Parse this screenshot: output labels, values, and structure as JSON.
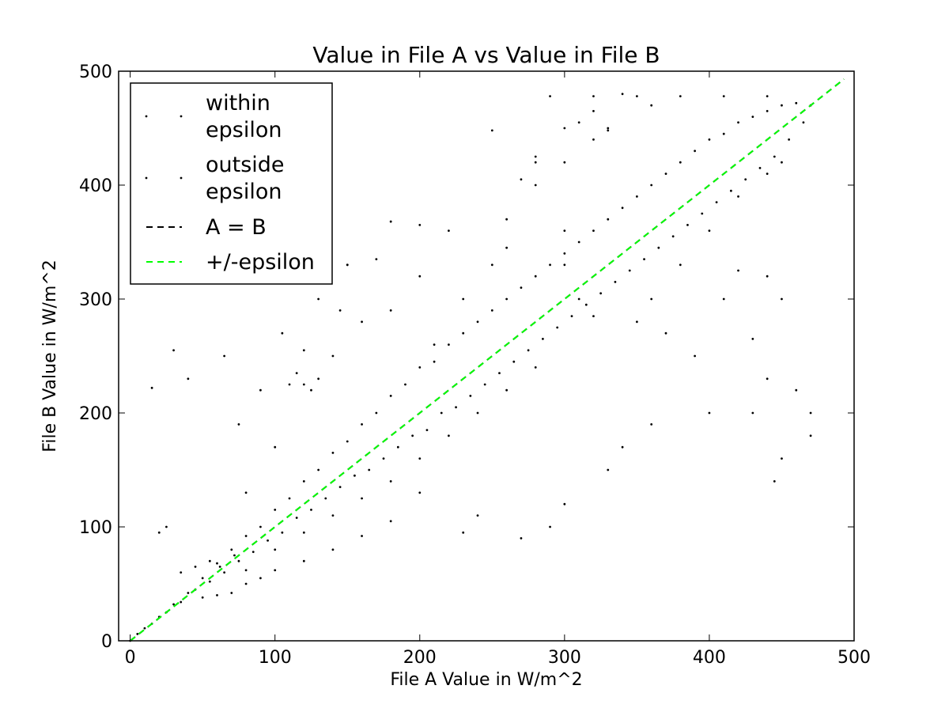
{
  "chart_data": {
    "type": "scatter",
    "title": "Value in File A vs Value in File B",
    "xlabel": "File A Value in W/m^2",
    "ylabel": "File B Value in W/m^2",
    "xlim": [
      -8,
      500
    ],
    "ylim": [
      0,
      500
    ],
    "x_ticks": [
      0,
      100,
      200,
      300,
      400,
      500
    ],
    "y_ticks": [
      0,
      100,
      200,
      300,
      400,
      500
    ],
    "x_tick_labels": [
      "0",
      "100",
      "200",
      "300",
      "400",
      "500"
    ],
    "y_tick_labels": [
      "0",
      "100",
      "200",
      "300",
      "400",
      "500"
    ],
    "grid": false,
    "legend_position": "top-left",
    "legend": [
      {
        "label_lines": [
          "within",
          "epsilon"
        ],
        "marker": "dot",
        "color": "#000000"
      },
      {
        "label_lines": [
          "outside",
          "epsilon"
        ],
        "marker": "dot",
        "color": "#000000"
      },
      {
        "label_lines": [
          "A = B"
        ],
        "marker": "dashed-line",
        "color": "#000000"
      },
      {
        "label_lines": [
          "+/-epsilon"
        ],
        "marker": "dashed-line",
        "color": "#00ff00"
      }
    ],
    "series": [
      {
        "name": "within epsilon",
        "kind": "points",
        "color": "#000000",
        "description_points": "dense cloud along y = x with wide spread",
        "points": [
          [
            0,
            0
          ],
          [
            5,
            6
          ],
          [
            10,
            11
          ],
          [
            15,
            15
          ],
          [
            20,
            21
          ],
          [
            25,
            25
          ],
          [
            30,
            32
          ],
          [
            35,
            34
          ],
          [
            40,
            42
          ],
          [
            45,
            45
          ],
          [
            50,
            55
          ],
          [
            55,
            52
          ],
          [
            60,
            68
          ],
          [
            65,
            60
          ],
          [
            70,
            80
          ],
          [
            75,
            70
          ],
          [
            80,
            92
          ],
          [
            85,
            78
          ],
          [
            90,
            100
          ],
          [
            95,
            88
          ],
          [
            100,
            115
          ],
          [
            105,
            95
          ],
          [
            110,
            125
          ],
          [
            115,
            108
          ],
          [
            120,
            140
          ],
          [
            125,
            115
          ],
          [
            130,
            150
          ],
          [
            135,
            125
          ],
          [
            140,
            165
          ],
          [
            145,
            135
          ],
          [
            150,
            175
          ],
          [
            155,
            145
          ],
          [
            160,
            190
          ],
          [
            165,
            150
          ],
          [
            170,
            200
          ],
          [
            175,
            160
          ],
          [
            180,
            215
          ],
          [
            185,
            170
          ],
          [
            190,
            225
          ],
          [
            195,
            180
          ],
          [
            200,
            240
          ],
          [
            205,
            185
          ],
          [
            210,
            245
          ],
          [
            215,
            200
          ],
          [
            220,
            260
          ],
          [
            225,
            205
          ],
          [
            230,
            270
          ],
          [
            235,
            215
          ],
          [
            240,
            280
          ],
          [
            245,
            225
          ],
          [
            250,
            290
          ],
          [
            255,
            235
          ],
          [
            260,
            300
          ],
          [
            265,
            245
          ],
          [
            270,
            310
          ],
          [
            275,
            255
          ],
          [
            280,
            320
          ],
          [
            285,
            265
          ],
          [
            290,
            330
          ],
          [
            295,
            275
          ],
          [
            300,
            340
          ],
          [
            305,
            285
          ],
          [
            310,
            350
          ],
          [
            315,
            295
          ],
          [
            320,
            360
          ],
          [
            325,
            305
          ],
          [
            330,
            370
          ],
          [
            335,
            315
          ],
          [
            340,
            380
          ],
          [
            345,
            325
          ],
          [
            350,
            390
          ],
          [
            355,
            335
          ],
          [
            360,
            400
          ],
          [
            365,
            345
          ],
          [
            370,
            410
          ],
          [
            375,
            355
          ],
          [
            380,
            420
          ],
          [
            385,
            365
          ],
          [
            390,
            430
          ],
          [
            395,
            375
          ],
          [
            400,
            440
          ],
          [
            405,
            385
          ],
          [
            410,
            445
          ],
          [
            415,
            395
          ],
          [
            420,
            455
          ],
          [
            425,
            405
          ],
          [
            430,
            460
          ],
          [
            435,
            415
          ],
          [
            440,
            465
          ],
          [
            445,
            425
          ],
          [
            450,
            470
          ],
          [
            455,
            440
          ],
          [
            460,
            472
          ],
          [
            465,
            455
          ],
          [
            470,
            470
          ],
          [
            150,
            330
          ],
          [
            170,
            335
          ],
          [
            200,
            320
          ],
          [
            250,
            330
          ],
          [
            300,
            330
          ],
          [
            310,
            300
          ],
          [
            180,
            290
          ],
          [
            160,
            280
          ],
          [
            140,
            250
          ],
          [
            130,
            230
          ],
          [
            120,
            225
          ],
          [
            210,
            260
          ],
          [
            230,
            300
          ],
          [
            260,
            370
          ],
          [
            280,
            400
          ],
          [
            300,
            420
          ],
          [
            320,
            440
          ],
          [
            330,
            450
          ],
          [
            360,
            300
          ],
          [
            380,
            330
          ],
          [
            400,
            360
          ],
          [
            420,
            390
          ],
          [
            440,
            410
          ],
          [
            450,
            420
          ],
          [
            280,
            240
          ],
          [
            260,
            220
          ],
          [
            240,
            200
          ],
          [
            220,
            180
          ],
          [
            200,
            160
          ],
          [
            180,
            140
          ],
          [
            160,
            125
          ],
          [
            140,
            110
          ],
          [
            120,
            95
          ],
          [
            100,
            80
          ],
          [
            80,
            62
          ]
        ]
      },
      {
        "name": "outside epsilon",
        "kind": "points",
        "color": "#000000",
        "points": [
          [
            290,
            478
          ],
          [
            320,
            478
          ],
          [
            350,
            478
          ],
          [
            380,
            478
          ],
          [
            410,
            478
          ],
          [
            440,
            478
          ],
          [
            300,
            450
          ],
          [
            330,
            448
          ],
          [
            250,
            448
          ],
          [
            280,
            425
          ],
          [
            260,
            345
          ],
          [
            300,
            360
          ],
          [
            200,
            365
          ],
          [
            220,
            360
          ],
          [
            180,
            368
          ],
          [
            420,
            325
          ],
          [
            440,
            320
          ],
          [
            450,
            300
          ],
          [
            430,
            265
          ],
          [
            440,
            230
          ],
          [
            460,
            220
          ],
          [
            470,
            200
          ],
          [
            450,
            160
          ],
          [
            445,
            140
          ],
          [
            470,
            180
          ],
          [
            430,
            200
          ],
          [
            390,
            250
          ],
          [
            400,
            200
          ],
          [
            360,
            190
          ],
          [
            340,
            170
          ],
          [
            330,
            150
          ],
          [
            300,
            120
          ],
          [
            290,
            100
          ],
          [
            270,
            90
          ],
          [
            240,
            110
          ],
          [
            230,
            95
          ],
          [
            200,
            130
          ],
          [
            180,
            105
          ],
          [
            160,
            92
          ],
          [
            140,
            80
          ],
          [
            120,
            70
          ],
          [
            100,
            62
          ],
          [
            90,
            55
          ],
          [
            80,
            50
          ],
          [
            70,
            42
          ],
          [
            60,
            40
          ],
          [
            50,
            38
          ],
          [
            65,
            250
          ],
          [
            75,
            190
          ],
          [
            80,
            130
          ],
          [
            105,
            270
          ],
          [
            90,
            220
          ],
          [
            100,
            170
          ],
          [
            150,
            330
          ],
          [
            145,
            290
          ],
          [
            130,
            300
          ],
          [
            120,
            255
          ],
          [
            115,
            235
          ],
          [
            110,
            225
          ],
          [
            125,
            220
          ],
          [
            340,
            480
          ],
          [
            360,
            470
          ],
          [
            320,
            465
          ],
          [
            310,
            455
          ],
          [
            280,
            420
          ],
          [
            270,
            405
          ],
          [
            320,
            285
          ],
          [
            350,
            280
          ],
          [
            370,
            270
          ],
          [
            410,
            300
          ],
          [
            20,
            95
          ],
          [
            40,
            230
          ],
          [
            30,
            255
          ],
          [
            15,
            222
          ],
          [
            25,
            100
          ],
          [
            35,
            60
          ],
          [
            45,
            65
          ],
          [
            55,
            70
          ],
          [
            62,
            65
          ],
          [
            72,
            75
          ]
        ]
      },
      {
        "name": "A = B",
        "kind": "line",
        "style": "dashed",
        "color": "#000000",
        "points": [
          [
            0,
            0
          ],
          [
            493,
            493
          ]
        ]
      },
      {
        "name": "+/-epsilon",
        "kind": "line",
        "style": "dashed",
        "color": "#00ff00",
        "points": [
          [
            0,
            0
          ],
          [
            493,
            493
          ]
        ]
      }
    ]
  }
}
